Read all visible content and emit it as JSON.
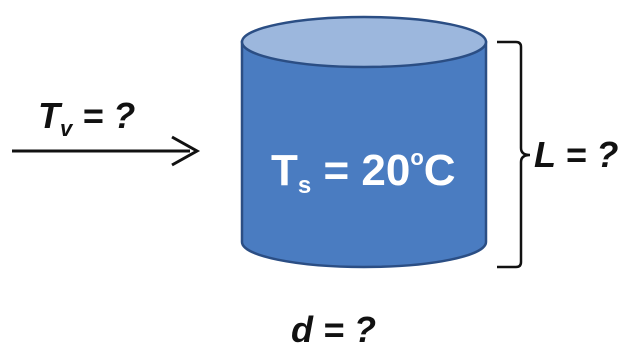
{
  "diagram": {
    "velocity_label": {
      "main": "T",
      "sub": "v",
      "rest": " = ?"
    },
    "surface_temp_label": {
      "main": "T",
      "sub": "s",
      "eq": " = 20",
      "sup": "o",
      "unit": "C"
    },
    "length_label": "L = ?",
    "diameter_label": "d = ?",
    "colors": {
      "cylinder_body": "#4a7cc1",
      "cylinder_top": "#9cb7dd",
      "cylinder_outline": "#2b4e84",
      "line": "#111111",
      "text_dark": "#111111",
      "text_light": "#ffffff"
    }
  }
}
